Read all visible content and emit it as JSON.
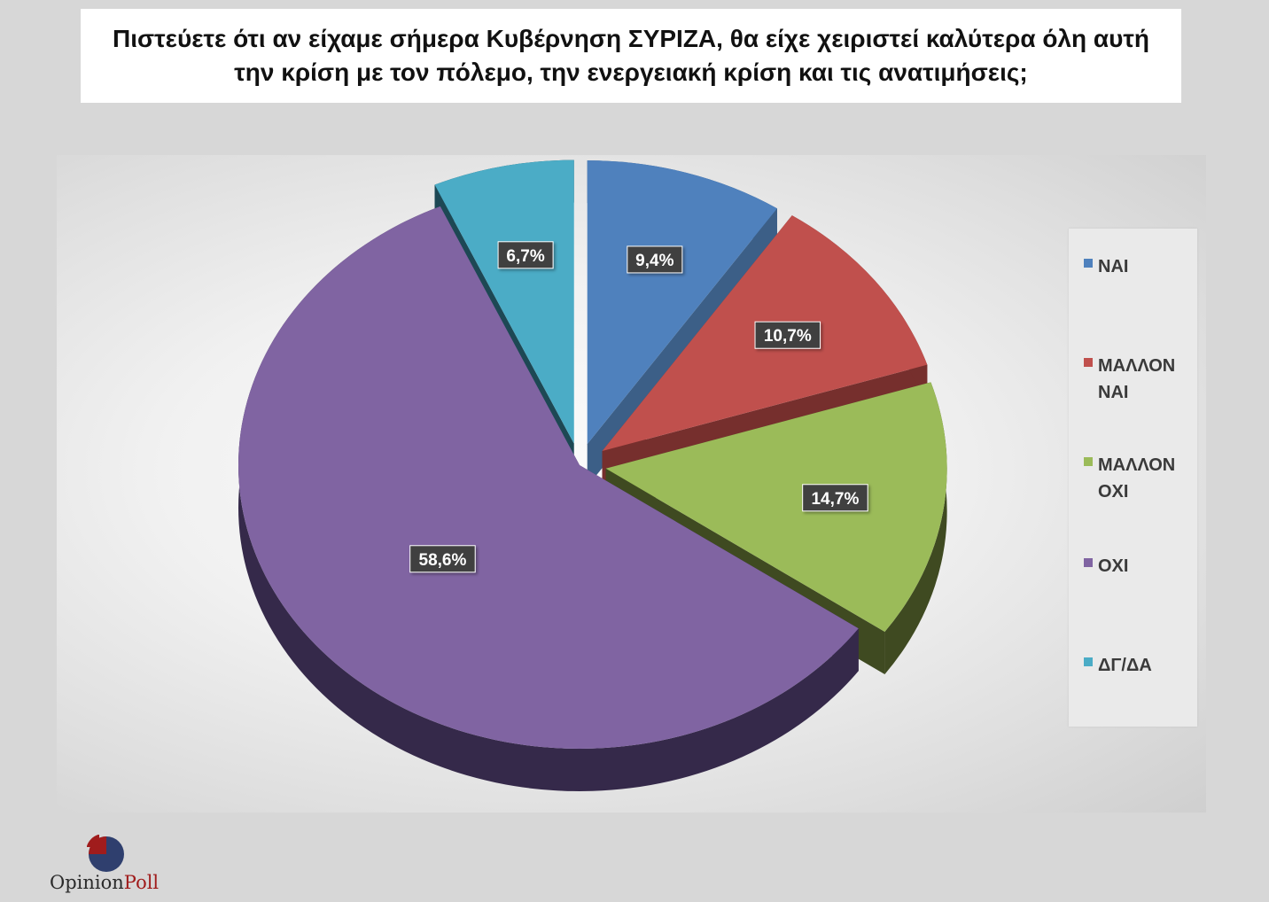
{
  "title": "Πιστεύετε ότι αν είχαμε σήμερα Κυβέρνηση ΣΥΡΙΖΑ, θα είχε χειριστεί καλύτερα όλη αυτή την κρίση με τον πόλεμο, την ενεργειακή κρίση και τις ανατιμήσεις;",
  "logo": {
    "word1": "Opinion",
    "word2": "Poll",
    "mark_icon": "opinionpoll-logo-icon"
  },
  "chart_data": {
    "type": "pie",
    "style": "3d-exploded",
    "legend_position": "right",
    "slices": [
      {
        "label": "ΝΑΙ",
        "value": 9.4,
        "display": "9,4%",
        "color": "#4f81bd",
        "side_color": "#3c5f87"
      },
      {
        "label": "ΜΑΛΛΟΝ ΝΑΙ",
        "value": 10.7,
        "display": "10,7%",
        "color": "#c0504d",
        "side_color": "#762f2d"
      },
      {
        "label": "ΜΑΛΛΟΝ ΟΧΙ",
        "value": 14.7,
        "display": "14,7%",
        "color": "#9bbb59",
        "side_color": "#3f4a21"
      },
      {
        "label": "ΟΧΙ",
        "value": 58.6,
        "display": "58,6%",
        "color": "#8064a2",
        "side_color": "#35294a"
      },
      {
        "label": "ΔΓ/ΔΑ",
        "value": 6.7,
        "display": "6,7%",
        "color": "#4bacc6",
        "side_color": "#1d4854"
      }
    ]
  }
}
